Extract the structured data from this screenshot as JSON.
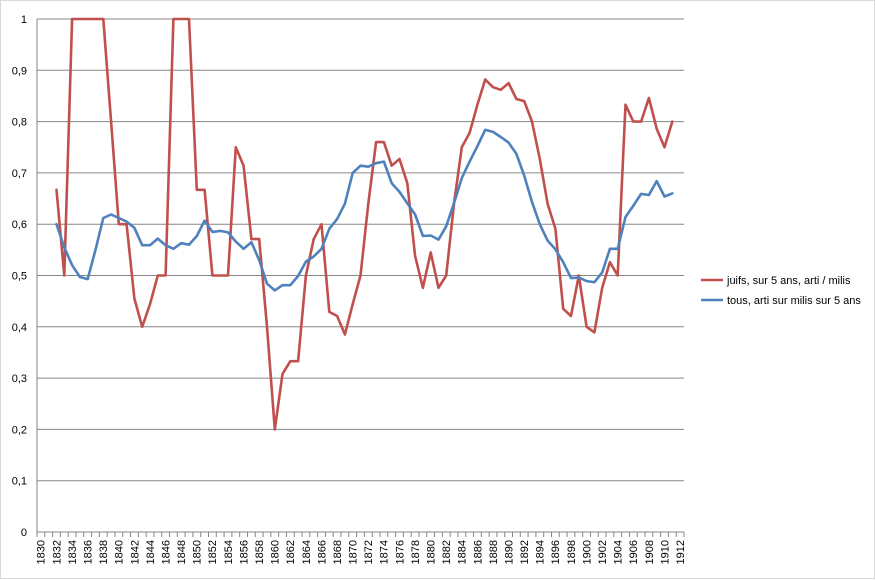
{
  "chart_data": {
    "type": "line",
    "title": "",
    "xlabel": "",
    "ylabel": "",
    "ylim": [
      0,
      1
    ],
    "yticks": [
      "0",
      "0,1",
      "0,2",
      "0,3",
      "0,4",
      "0,5",
      "0,6",
      "0,7",
      "0,8",
      "0,9",
      "1"
    ],
    "xlim": [
      1830,
      1913
    ],
    "xticks": [
      "1830",
      "1832",
      "1834",
      "1836",
      "1838",
      "1840",
      "1842",
      "1844",
      "1846",
      "1848",
      "1850",
      "1852",
      "1854",
      "1856",
      "1858",
      "1860",
      "1862",
      "1864",
      "1866",
      "1868",
      "1870",
      "1872",
      "1874",
      "1876",
      "1878",
      "1880",
      "1882",
      "1884",
      "1886",
      "1888",
      "1890",
      "1892",
      "1894",
      "1896",
      "1898",
      "1900",
      "1902",
      "1904",
      "1906",
      "1908",
      "1910",
      "1912"
    ],
    "grid": "horizontal",
    "legend_position": "right",
    "series": [
      {
        "name": "juifs, sur 5 ans, arti /  milis",
        "color": "#C0504D",
        "x": [
          1832,
          1833,
          1834,
          1835,
          1836,
          1837,
          1838,
          1839,
          1840,
          1841,
          1842,
          1843,
          1844,
          1845,
          1846,
          1847,
          1848,
          1849,
          1850,
          1851,
          1852,
          1853,
          1854,
          1855,
          1856,
          1857,
          1858,
          1859,
          1860,
          1861,
          1862,
          1863,
          1864,
          1865,
          1866,
          1867,
          1868,
          1869,
          1870,
          1871,
          1872,
          1873,
          1874,
          1875,
          1876,
          1877,
          1878,
          1879,
          1880,
          1881,
          1882,
          1883,
          1884,
          1885,
          1886,
          1887,
          1888,
          1889,
          1890,
          1891,
          1892,
          1893,
          1894,
          1895,
          1896,
          1897,
          1898,
          1899,
          1900,
          1901,
          1902,
          1903,
          1904,
          1905,
          1906,
          1907,
          1908,
          1909,
          1910,
          1911
        ],
        "y": [
          0.667,
          0.5,
          1,
          1,
          1,
          1,
          1,
          0.8,
          0.6,
          0.6,
          0.455,
          0.4,
          0.444,
          0.5,
          0.5,
          1,
          1,
          1,
          0.667,
          0.667,
          0.5,
          0.5,
          0.5,
          0.75,
          0.714,
          0.571,
          0.571,
          0.4,
          0.2,
          0.308,
          0.333,
          0.333,
          0.5,
          0.571,
          0.6,
          0.429,
          0.421,
          0.385,
          0.444,
          0.5,
          0.64,
          0.76,
          0.76,
          0.714,
          0.727,
          0.68,
          0.538,
          0.476,
          0.545,
          0.476,
          0.5,
          0.64,
          0.75,
          0.778,
          0.833,
          0.882,
          0.867,
          0.862,
          0.875,
          0.844,
          0.84,
          0.8,
          0.727,
          0.64,
          0.591,
          0.435,
          0.421,
          0.5,
          0.4,
          0.389,
          0.476,
          0.526,
          0.5,
          0.833,
          0.8,
          0.8,
          0.846,
          0.786,
          0.75,
          0.8
        ]
      },
      {
        "name": "tous, arti sur milis sur 5 ans",
        "color": "#4F81BD",
        "x": [
          1832,
          1833,
          1834,
          1835,
          1836,
          1837,
          1838,
          1839,
          1840,
          1841,
          1842,
          1843,
          1844,
          1845,
          1846,
          1847,
          1848,
          1849,
          1850,
          1851,
          1852,
          1853,
          1854,
          1855,
          1856,
          1857,
          1858,
          1859,
          1860,
          1861,
          1862,
          1863,
          1864,
          1865,
          1866,
          1867,
          1868,
          1869,
          1870,
          1871,
          1872,
          1873,
          1874,
          1875,
          1876,
          1877,
          1878,
          1879,
          1880,
          1881,
          1882,
          1883,
          1884,
          1885,
          1886,
          1887,
          1888,
          1889,
          1890,
          1891,
          1892,
          1893,
          1894,
          1895,
          1896,
          1897,
          1898,
          1899,
          1900,
          1901,
          1902,
          1903,
          1904,
          1905,
          1906,
          1907,
          1908,
          1909,
          1910,
          1911
        ],
        "y": [
          0.6,
          0.555,
          0.52,
          0.497,
          0.493,
          0.55,
          0.612,
          0.619,
          0.612,
          0.605,
          0.593,
          0.559,
          0.559,
          0.572,
          0.559,
          0.552,
          0.563,
          0.56,
          0.577,
          0.607,
          0.585,
          0.587,
          0.584,
          0.566,
          0.552,
          0.565,
          0.53,
          0.484,
          0.471,
          0.481,
          0.481,
          0.499,
          0.527,
          0.537,
          0.552,
          0.591,
          0.61,
          0.64,
          0.7,
          0.714,
          0.712,
          0.719,
          0.722,
          0.68,
          0.663,
          0.641,
          0.619,
          0.577,
          0.578,
          0.57,
          0.596,
          0.641,
          0.69,
          0.722,
          0.752,
          0.784,
          0.78,
          0.77,
          0.759,
          0.737,
          0.695,
          0.643,
          0.6,
          0.568,
          0.551,
          0.526,
          0.495,
          0.496,
          0.489,
          0.487,
          0.506,
          0.552,
          0.552,
          0.614,
          0.636,
          0.659,
          0.657,
          0.684,
          0.654,
          0.66
        ]
      }
    ]
  }
}
